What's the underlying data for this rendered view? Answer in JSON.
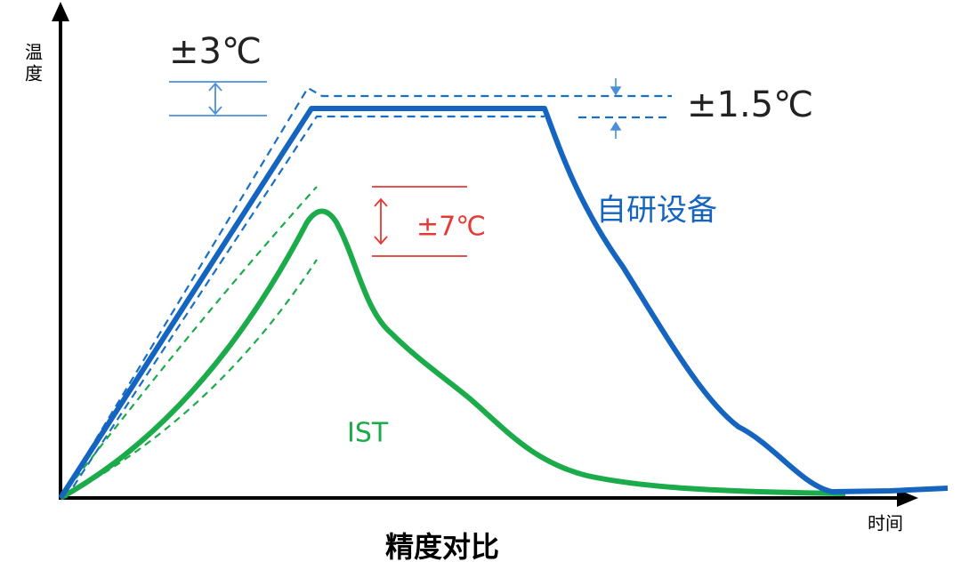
{
  "y_axis_label_chars": [
    "温",
    "度"
  ],
  "x_axis_label": "时间",
  "title": "精度对比",
  "annotations": {
    "blue_band": "±3℃",
    "blue_flat_band": "±1.5℃",
    "green_band": "±7℃"
  },
  "series_labels": {
    "blue": "自研设备",
    "green": "IST"
  }
}
